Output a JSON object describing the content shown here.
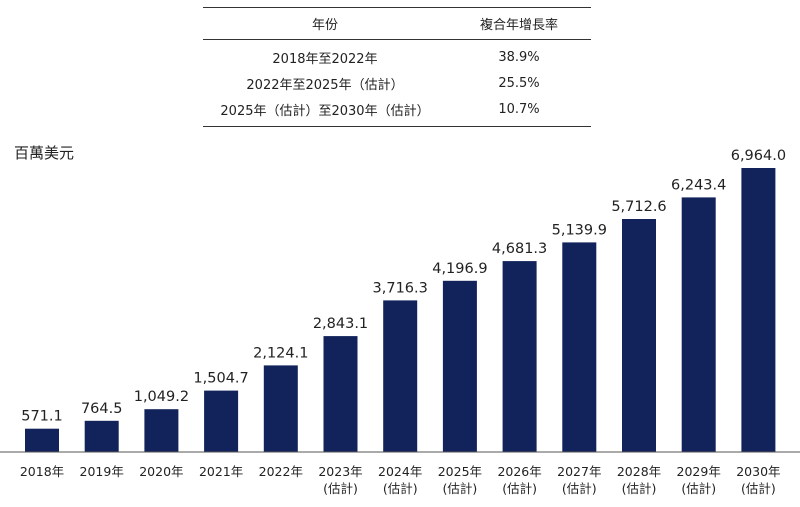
{
  "cagr_table": {
    "header": {
      "period": "年份",
      "rate": "複合年增長率"
    },
    "rows": [
      {
        "period": "2018年至2022年",
        "rate": "38.9%"
      },
      {
        "period": "2022年至2025年（估計）",
        "rate": "25.5%"
      },
      {
        "period": "2025年（估計）至2030年（估計）",
        "rate": "10.7%"
      }
    ]
  },
  "unit_label": "百萬美元",
  "chart_data": {
    "type": "bar",
    "ylabel": "百萬美元",
    "categories": [
      [
        "2018年"
      ],
      [
        "2019年"
      ],
      [
        "2020年"
      ],
      [
        "2021年"
      ],
      [
        "2022年"
      ],
      [
        "2023年",
        "(估計)"
      ],
      [
        "2024年",
        "(估計)"
      ],
      [
        "2025年",
        "(估計)"
      ],
      [
        "2026年",
        "(估計)"
      ],
      [
        "2027年",
        "(估計)"
      ],
      [
        "2028年",
        "(估計)"
      ],
      [
        "2029年",
        "(估計)"
      ],
      [
        "2030年",
        "(估計)"
      ]
    ],
    "values": [
      571.1,
      764.5,
      1049.2,
      1504.7,
      2124.1,
      2843.1,
      3716.3,
      4196.9,
      4681.3,
      5139.9,
      5712.6,
      6243.4,
      6964.0
    ],
    "value_labels": [
      "571.1",
      "764.5",
      "1,049.2",
      "1,504.7",
      "2,124.1",
      "2,843.1",
      "3,716.3",
      "4,196.9",
      "4,681.3",
      "5,139.9",
      "5,712.6",
      "6,243.4",
      "6,964.0"
    ],
    "ylim": [
      0,
      6964.0
    ],
    "bar_color": "#12225a",
    "grid": false,
    "legend": "none"
  }
}
